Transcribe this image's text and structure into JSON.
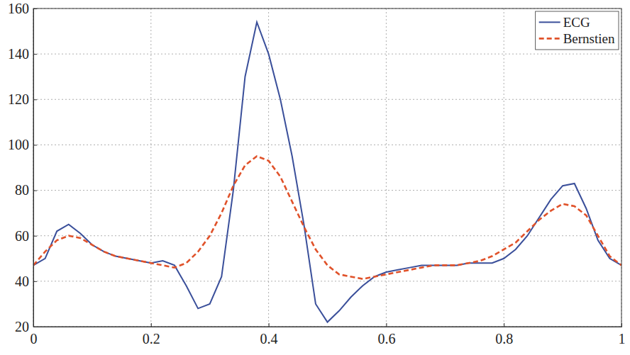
{
  "chart_data": {
    "type": "line",
    "x": [
      0,
      0.02,
      0.04,
      0.06,
      0.08,
      0.1,
      0.12,
      0.14,
      0.16,
      0.18,
      0.2,
      0.22,
      0.24,
      0.26,
      0.28,
      0.3,
      0.32,
      0.34,
      0.36,
      0.38,
      0.4,
      0.42,
      0.44,
      0.46,
      0.48,
      0.5,
      0.52,
      0.54,
      0.56,
      0.58,
      0.6,
      0.62,
      0.64,
      0.66,
      0.68,
      0.7,
      0.72,
      0.74,
      0.76,
      0.78,
      0.8,
      0.82,
      0.84,
      0.86,
      0.88,
      0.9,
      0.92,
      0.94,
      0.96,
      0.98,
      1
    ],
    "series": [
      {
        "name": "ECG",
        "color": "#3a4f9a",
        "line_style": "solid",
        "values": [
          47,
          50,
          62,
          65,
          61,
          56,
          53,
          51,
          50,
          49,
          48,
          49,
          47,
          38,
          28,
          30,
          42,
          80,
          130,
          154,
          140,
          120,
          95,
          65,
          30,
          22,
          27,
          33,
          38,
          42,
          44,
          45,
          46,
          47,
          47,
          47,
          47,
          48,
          48,
          48,
          50,
          54,
          60,
          68,
          76,
          82,
          83,
          72,
          58,
          50,
          47
        ]
      },
      {
        "name": "Bernstien",
        "color": "#e0522a",
        "line_style": "dashed",
        "values": [
          47,
          53,
          58,
          60,
          59,
          56,
          53,
          51,
          50,
          49,
          48,
          47,
          46,
          48,
          53,
          60,
          70,
          82,
          91,
          95,
          93,
          86,
          75,
          64,
          54,
          47,
          43,
          42,
          41,
          42,
          43,
          44,
          45,
          46,
          47,
          47,
          47,
          48,
          49,
          51,
          54,
          57,
          62,
          67,
          71,
          74,
          73,
          69,
          60,
          51,
          47
        ]
      }
    ],
    "xlim": [
      0,
      1
    ],
    "xticks": [
      0,
      0.2,
      0.4,
      0.6,
      0.8,
      1
    ],
    "ylim": [
      20,
      160
    ],
    "yticks": [
      20,
      40,
      60,
      80,
      100,
      120,
      140,
      160
    ],
    "grid": true,
    "legend": "upper-right"
  }
}
